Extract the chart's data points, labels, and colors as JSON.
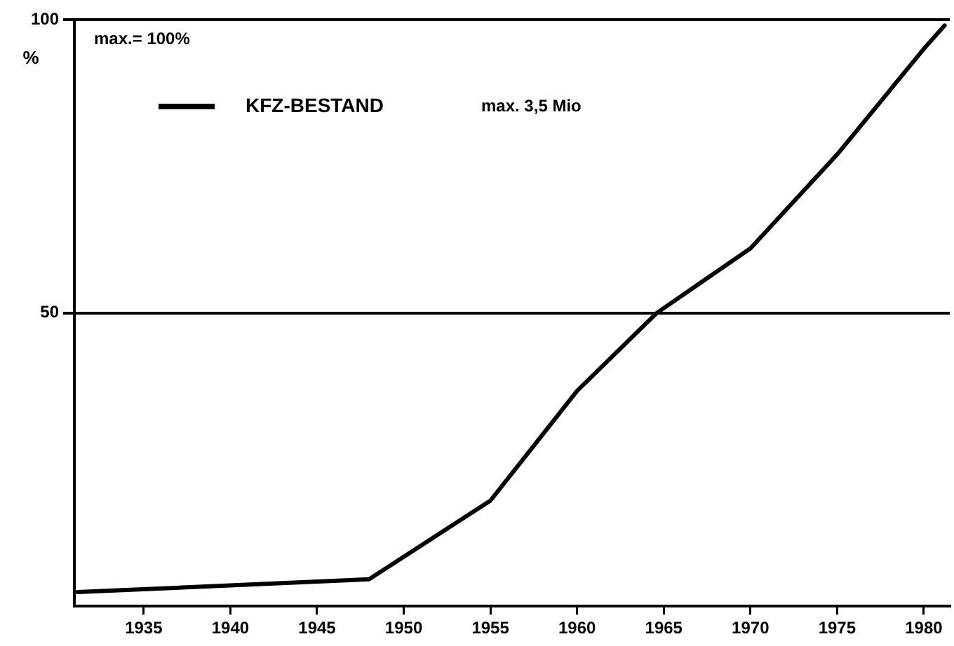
{
  "chart_data": {
    "type": "line",
    "ylabel": "%",
    "legend": "top left",
    "grid": "y",
    "marker": "none",
    "line_style": "solid",
    "xlim": [
      1931,
      1981.5
    ],
    "xticks": [
      1935,
      1940,
      1945,
      1950,
      1955,
      1960,
      1965,
      1970,
      1975,
      1980
    ],
    "ylim": [
      0,
      100
    ],
    "yticks": [
      50,
      100
    ],
    "annotations": [
      "max.= 100%",
      "max. 3,5 Mio"
    ],
    "series": [
      {
        "name": "KFZ-BESTAND",
        "color": "#000000",
        "x": [
          1931.2,
          1948,
          1955,
          1960,
          1964.6,
          1970,
          1975,
          1980,
          1981.2
        ],
        "values": [
          2.4,
          4.6,
          18,
          36.7,
          50,
          61,
          77,
          95,
          99
        ]
      }
    ]
  }
}
